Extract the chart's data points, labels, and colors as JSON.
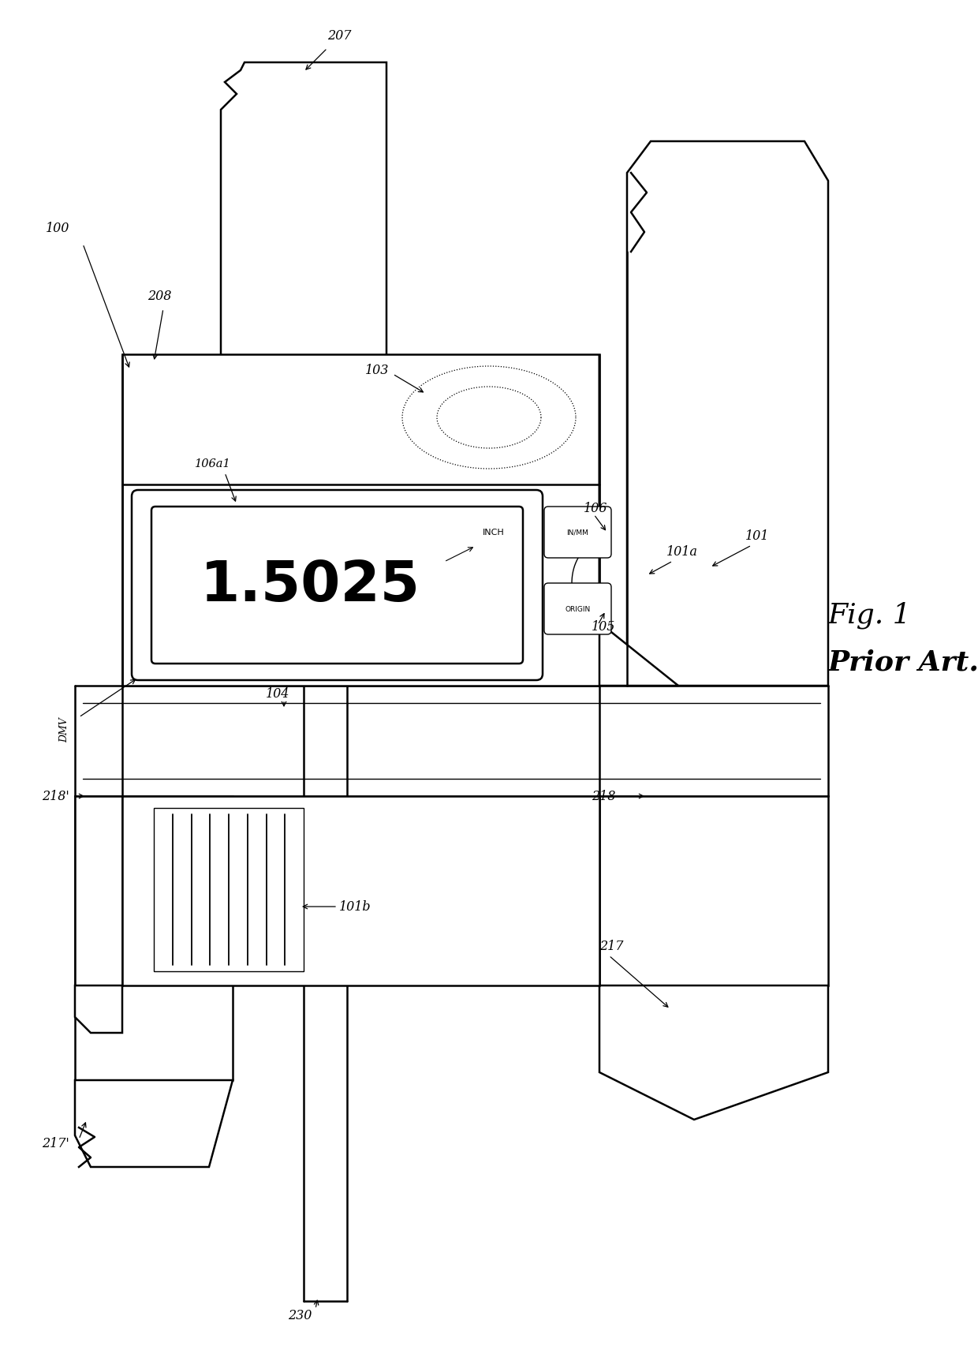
{
  "bg_color": "#ffffff",
  "line_color": "#000000",
  "fig_label": "Fig. 1",
  "fig_sublabel": "Prior Art.",
  "display_value": "1.5025",
  "display_label": "INCH",
  "button1_label": "IN/MM",
  "button2_label": "ORIGIN",
  "lw_main": 1.8,
  "lw_thin": 1.0,
  "lw_dotted": 0.9
}
